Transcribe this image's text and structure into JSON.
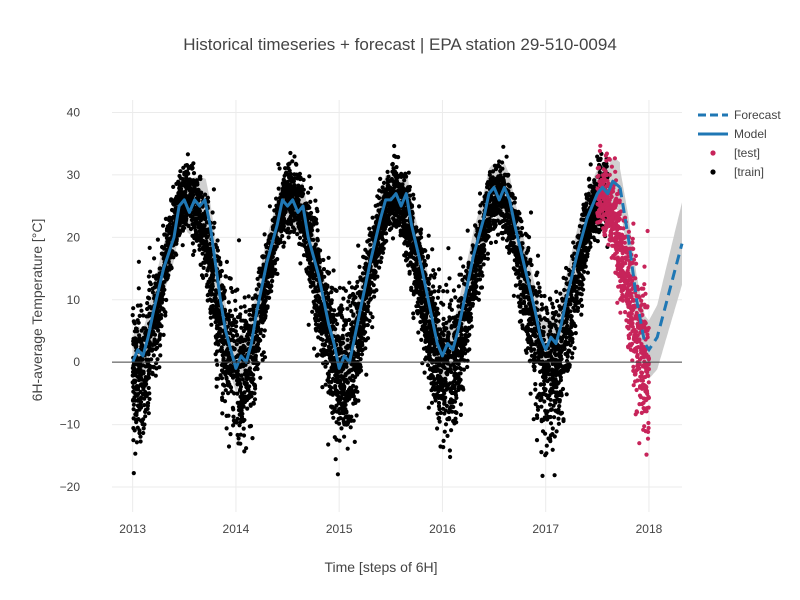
{
  "chart_data": {
    "type": "scatter",
    "title": "Historical timeseries + forecast | EPA station 29-510-0094",
    "xlabel": "Time [steps of 6H]",
    "ylabel": "6H-average Temperature [°C]",
    "xlim": [
      2012.8,
      2018.32
    ],
    "ylim": [
      -24,
      42
    ],
    "x_ticks": [
      2013,
      2014,
      2015,
      2016,
      2017,
      2018
    ],
    "x_tick_labels": [
      "2013",
      "2014",
      "2015",
      "2016",
      "2017",
      "2018"
    ],
    "y_ticks": [
      -20,
      -10,
      0,
      10,
      20,
      30,
      40
    ],
    "y_tick_labels": [
      "−20",
      "−10",
      "0",
      "10",
      "20",
      "30",
      "40"
    ],
    "grid": true,
    "zero_line": true,
    "legend_position": "top-right",
    "colors": {
      "model": "#1f77b4",
      "forecast": "#1f77b4",
      "test": "#c7245a",
      "train": "#000000",
      "band": "#c8c8c8",
      "grid": "#ebebeb"
    },
    "series": [
      {
        "name": "Forecast",
        "style": "dashed-line",
        "x": [
          2017.72,
          2017.8,
          2017.88,
          2017.96,
          2018.0,
          2018.08,
          2018.16,
          2018.24,
          2018.32
        ],
        "y": [
          28,
          20,
          10,
          3,
          2,
          4,
          9,
          14,
          19
        ]
      },
      {
        "name": "Model",
        "style": "line",
        "x": [
          2013.0,
          2013.05,
          2013.1,
          2013.15,
          2013.2,
          2013.3,
          2013.4,
          2013.45,
          2013.5,
          2013.55,
          2013.6,
          2013.65,
          2013.7,
          2013.75,
          2013.8,
          2013.85,
          2013.9,
          2013.95,
          2014.0,
          2014.05,
          2014.1,
          2014.15,
          2014.2,
          2014.3,
          2014.4,
          2014.45,
          2014.5,
          2014.55,
          2014.6,
          2014.65,
          2014.7,
          2014.8,
          2014.9,
          2014.95,
          2015.0,
          2015.05,
          2015.1,
          2015.15,
          2015.2,
          2015.3,
          2015.4,
          2015.45,
          2015.5,
          2015.55,
          2015.6,
          2015.65,
          2015.7,
          2015.8,
          2015.9,
          2015.95,
          2016.0,
          2016.05,
          2016.1,
          2016.15,
          2016.2,
          2016.3,
          2016.4,
          2016.45,
          2016.5,
          2016.55,
          2016.6,
          2016.65,
          2016.7,
          2016.8,
          2016.9,
          2016.95,
          2017.0,
          2017.05,
          2017.1,
          2017.15,
          2017.2,
          2017.3,
          2017.4,
          2017.5,
          2017.55,
          2017.6,
          2017.65,
          2017.72
        ],
        "y": [
          0,
          2,
          1,
          4,
          8,
          15,
          20,
          25,
          26,
          24,
          26,
          25,
          26,
          22,
          16,
          10,
          5,
          2,
          -1,
          1,
          0,
          3,
          8,
          16,
          22,
          26,
          25,
          26,
          24,
          25,
          20,
          14,
          6,
          3,
          -1,
          1,
          0,
          4,
          8,
          16,
          23,
          26,
          26,
          27,
          25,
          27,
          22,
          15,
          7,
          3,
          1,
          3,
          2,
          5,
          9,
          17,
          23,
          27,
          28,
          26,
          28,
          26,
          22,
          15,
          8,
          4,
          2,
          4,
          3,
          6,
          10,
          17,
          23,
          27,
          28,
          27,
          29,
          28
        ]
      },
      {
        "name": "[test]",
        "style": "markers",
        "x_range": [
          2017.5,
          2018.0
        ],
        "count": 700,
        "seed": 7
      },
      {
        "name": "[train]",
        "style": "markers",
        "x_range": [
          2013.0,
          2017.6
        ],
        "count": 6500,
        "seed": 3
      }
    ]
  }
}
